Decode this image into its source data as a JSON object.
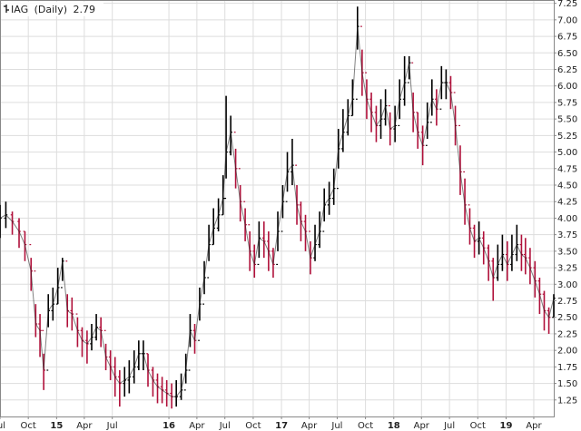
{
  "chart_data": {
    "type": "line",
    "style": "ohlc-bars",
    "legend": {
      "placement": "top-left",
      "symbol": "IAG",
      "period": "(Daily)",
      "last_value": "2.79",
      "icon": "ohlc-bar-icon"
    },
    "title": "",
    "xlabel": "",
    "ylabel": "",
    "y_axis_side": "right",
    "ylim": [
      1.0,
      7.3
    ],
    "yticks": [
      1.25,
      1.5,
      1.75,
      2.0,
      2.25,
      2.5,
      2.75,
      3.0,
      3.25,
      3.5,
      3.75,
      4.0,
      4.25,
      4.5,
      4.75,
      5.0,
      5.25,
      5.5,
      5.75,
      6.0,
      6.25,
      6.5,
      6.75,
      7.0,
      7.25
    ],
    "ytick_labels": [
      "1.25",
      "1.50",
      "1.75",
      "2.00",
      "2.25",
      "2.50",
      "2.75",
      "3.00",
      "3.25",
      "3.50",
      "3.75",
      "4.00",
      "4.25",
      "4.50",
      "4.75",
      "5.00",
      "5.25",
      "5.50",
      "5.75",
      "6.00",
      "6.25",
      "6.50",
      "6.75",
      "7.00",
      "7.25"
    ],
    "xlim": [
      "2014-07-01",
      "2019-06-05"
    ],
    "xticks": [
      "2014-07-01",
      "2014-10-01",
      "2015-01-01",
      "2015-04-01",
      "2015-07-01",
      "2016-01-01",
      "2016-04-01",
      "2016-07-01",
      "2016-10-01",
      "2017-01-01",
      "2017-04-01",
      "2017-07-01",
      "2017-10-01",
      "2018-01-01",
      "2018-04-01",
      "2018-07-01",
      "2018-10-01",
      "2019-01-01",
      "2019-04-01"
    ],
    "xtick_labels": [
      "Jul",
      "Oct",
      "15",
      "Apr",
      "Jul",
      "16",
      "Apr",
      "Jul",
      "Oct",
      "17",
      "Apr",
      "Jul",
      "Oct",
      "18",
      "Apr",
      "Jul",
      "Oct",
      "19",
      "Apr"
    ],
    "xtick_bold": [
      false,
      false,
      true,
      false,
      false,
      true,
      false,
      false,
      false,
      true,
      false,
      false,
      false,
      true,
      false,
      false,
      false,
      true,
      false
    ],
    "grid": true,
    "colors": {
      "up": "#000000",
      "down": "#b0103a",
      "grid": "#dddddd",
      "axis": "#888888"
    },
    "x": [
      "2014-07-01",
      "2014-07-20",
      "2014-08-10",
      "2014-09-01",
      "2014-09-20",
      "2014-10-10",
      "2014-10-25",
      "2014-11-08",
      "2014-11-20",
      "2014-12-05",
      "2014-12-20",
      "2015-01-05",
      "2015-01-20",
      "2015-02-05",
      "2015-02-20",
      "2015-03-10",
      "2015-03-25",
      "2015-04-10",
      "2015-04-25",
      "2015-05-10",
      "2015-05-25",
      "2015-06-10",
      "2015-06-25",
      "2015-07-10",
      "2015-07-25",
      "2015-08-10",
      "2015-08-25",
      "2015-09-10",
      "2015-09-25",
      "2015-10-10",
      "2015-10-25",
      "2015-11-10",
      "2015-11-25",
      "2015-12-10",
      "2015-12-25",
      "2016-01-10",
      "2016-01-25",
      "2016-02-10",
      "2016-02-25",
      "2016-03-10",
      "2016-03-25",
      "2016-04-10",
      "2016-04-25",
      "2016-05-10",
      "2016-05-25",
      "2016-06-10",
      "2016-06-25",
      "2016-07-05",
      "2016-07-20",
      "2016-08-05",
      "2016-08-20",
      "2016-09-05",
      "2016-09-20",
      "2016-10-05",
      "2016-10-20",
      "2016-11-05",
      "2016-11-20",
      "2016-12-05",
      "2016-12-20",
      "2017-01-05",
      "2017-01-20",
      "2017-02-05",
      "2017-02-20",
      "2017-03-05",
      "2017-03-20",
      "2017-04-05",
      "2017-04-20",
      "2017-05-05",
      "2017-05-20",
      "2017-06-05",
      "2017-06-20",
      "2017-07-05",
      "2017-07-20",
      "2017-08-05",
      "2017-08-20",
      "2017-09-05",
      "2017-09-20",
      "2017-10-05",
      "2017-10-20",
      "2017-11-05",
      "2017-11-20",
      "2017-12-05",
      "2017-12-20",
      "2018-01-05",
      "2018-01-20",
      "2018-02-05",
      "2018-02-20",
      "2018-03-05",
      "2018-03-20",
      "2018-04-05",
      "2018-04-20",
      "2018-05-05",
      "2018-05-20",
      "2018-06-05",
      "2018-06-20",
      "2018-07-05",
      "2018-07-20",
      "2018-08-05",
      "2018-08-20",
      "2018-09-05",
      "2018-09-20",
      "2018-10-05",
      "2018-10-20",
      "2018-11-05",
      "2018-11-20",
      "2018-12-05",
      "2018-12-20",
      "2019-01-05",
      "2019-01-20",
      "2019-02-05",
      "2019-02-20",
      "2019-03-05",
      "2019-03-20",
      "2019-04-05",
      "2019-04-20",
      "2019-05-05",
      "2019-05-20",
      "2019-06-05"
    ],
    "series": [
      {
        "values": [
          4.0,
          4.05,
          3.95,
          3.8,
          3.6,
          3.2,
          2.4,
          2.3,
          1.7,
          2.6,
          2.7,
          2.95,
          3.35,
          2.6,
          2.55,
          2.3,
          2.15,
          2.1,
          2.2,
          2.35,
          2.3,
          1.9,
          1.75,
          1.6,
          1.5,
          1.55,
          1.6,
          1.75,
          1.95,
          1.95,
          1.7,
          1.55,
          1.45,
          1.4,
          1.35,
          1.3,
          1.3,
          1.4,
          1.7,
          2.3,
          2.15,
          2.7,
          3.1,
          3.6,
          3.85,
          4.05,
          4.3,
          5.0,
          5.3,
          4.75,
          4.25,
          3.9,
          3.5,
          3.3,
          3.7,
          3.65,
          3.5,
          3.3,
          3.8,
          4.25,
          4.7,
          4.8,
          4.2,
          3.95,
          3.8,
          3.4,
          3.6,
          3.8,
          4.2,
          4.3,
          4.45,
          5.05,
          5.3,
          5.55,
          5.8,
          6.9,
          6.2,
          5.8,
          5.6,
          5.4,
          5.5,
          5.7,
          5.35,
          5.4,
          5.8,
          6.05,
          6.35,
          5.6,
          5.3,
          5.1,
          5.45,
          5.8,
          5.65,
          6.05,
          6.05,
          5.9,
          5.4,
          4.7,
          4.2,
          3.85,
          3.65,
          3.7,
          3.55,
          3.35,
          3.1,
          3.3,
          3.45,
          3.3,
          3.45,
          3.6,
          3.45,
          3.4,
          3.25,
          3.05,
          2.85,
          2.6,
          2.5,
          2.79
        ],
        "highs": [
          4.2,
          4.25,
          4.1,
          4.0,
          3.8,
          3.4,
          2.7,
          2.55,
          1.95,
          2.85,
          2.95,
          3.25,
          3.4,
          2.85,
          2.8,
          2.5,
          2.35,
          2.3,
          2.4,
          2.55,
          2.5,
          2.1,
          2.0,
          1.9,
          1.7,
          1.75,
          1.85,
          2.0,
          2.15,
          2.15,
          1.95,
          1.75,
          1.65,
          1.6,
          1.55,
          1.5,
          1.55,
          1.65,
          1.95,
          2.55,
          2.4,
          2.95,
          3.35,
          3.9,
          4.15,
          4.3,
          4.65,
          5.85,
          5.55,
          5.05,
          4.5,
          4.15,
          3.8,
          3.6,
          3.95,
          3.95,
          3.8,
          3.55,
          4.1,
          4.5,
          5.0,
          5.2,
          4.5,
          4.25,
          4.05,
          3.65,
          3.9,
          4.1,
          4.45,
          4.55,
          4.75,
          5.35,
          5.65,
          5.8,
          6.1,
          7.2,
          6.55,
          6.1,
          5.9,
          5.7,
          5.8,
          5.95,
          5.6,
          5.7,
          6.1,
          6.45,
          6.45,
          5.9,
          5.6,
          5.4,
          5.75,
          6.1,
          5.95,
          6.3,
          6.25,
          6.15,
          5.7,
          5.1,
          4.6,
          4.15,
          3.9,
          3.95,
          3.8,
          3.6,
          3.4,
          3.6,
          3.75,
          3.65,
          3.75,
          3.9,
          3.75,
          3.7,
          3.55,
          3.35,
          3.1,
          2.9,
          2.65,
          2.85
        ],
        "lows": [
          3.7,
          3.85,
          3.75,
          3.55,
          3.35,
          2.9,
          2.2,
          1.9,
          1.4,
          2.35,
          2.45,
          2.7,
          3.05,
          2.35,
          2.3,
          2.05,
          1.9,
          1.8,
          2.0,
          2.15,
          2.05,
          1.7,
          1.55,
          1.3,
          1.15,
          1.3,
          1.35,
          1.5,
          1.7,
          1.7,
          1.45,
          1.3,
          1.2,
          1.2,
          1.15,
          1.12,
          1.15,
          1.25,
          1.5,
          2.05,
          1.95,
          2.45,
          2.85,
          3.35,
          3.6,
          3.8,
          4.05,
          4.6,
          4.95,
          4.45,
          3.95,
          3.65,
          3.2,
          3.1,
          3.4,
          3.4,
          3.2,
          3.1,
          3.5,
          4.0,
          4.4,
          4.5,
          3.9,
          3.65,
          3.5,
          3.15,
          3.35,
          3.55,
          3.95,
          4.05,
          4.2,
          4.75,
          5.0,
          5.25,
          5.55,
          6.55,
          5.85,
          5.5,
          5.3,
          5.15,
          5.2,
          5.4,
          5.1,
          5.15,
          5.5,
          5.7,
          6.1,
          5.3,
          5.05,
          4.8,
          5.2,
          5.55,
          5.4,
          5.8,
          5.8,
          5.65,
          5.1,
          4.35,
          3.9,
          3.6,
          3.4,
          3.45,
          3.3,
          3.05,
          2.75,
          3.05,
          3.2,
          3.05,
          3.2,
          3.35,
          3.2,
          3.15,
          3.0,
          2.8,
          2.55,
          2.3,
          2.25,
          2.5
        ]
      }
    ]
  }
}
